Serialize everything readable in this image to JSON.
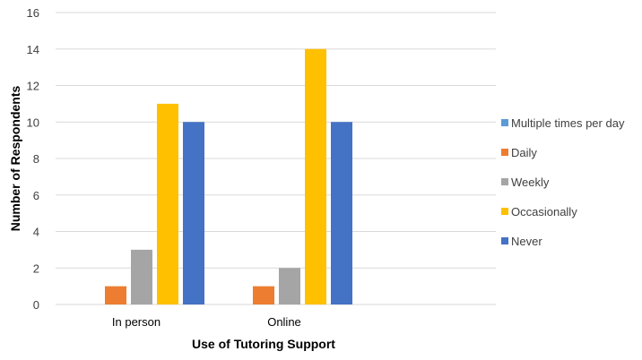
{
  "chart_data": {
    "type": "bar",
    "title": "",
    "xlabel": "Use of Tutoring Support",
    "ylabel": "Number of Respondents",
    "categories": [
      "In person",
      "Online"
    ],
    "ylim": [
      0,
      16
    ],
    "yticks": [
      0,
      2,
      4,
      6,
      8,
      10,
      12,
      14,
      16
    ],
    "grid": true,
    "legend_position": "right",
    "series": [
      {
        "name": "Multiple times per day",
        "color": "#5b9bd5",
        "values": [
          0,
          0
        ]
      },
      {
        "name": "Daily",
        "color": "#ed7d31",
        "values": [
          1,
          1
        ]
      },
      {
        "name": "Weekly",
        "color": "#a5a5a5",
        "values": [
          3,
          2
        ]
      },
      {
        "name": "Occasionally",
        "color": "#ffc000",
        "values": [
          11,
          14
        ]
      },
      {
        "name": "Never",
        "color": "#4472c4",
        "values": [
          10,
          10
        ]
      }
    ]
  }
}
